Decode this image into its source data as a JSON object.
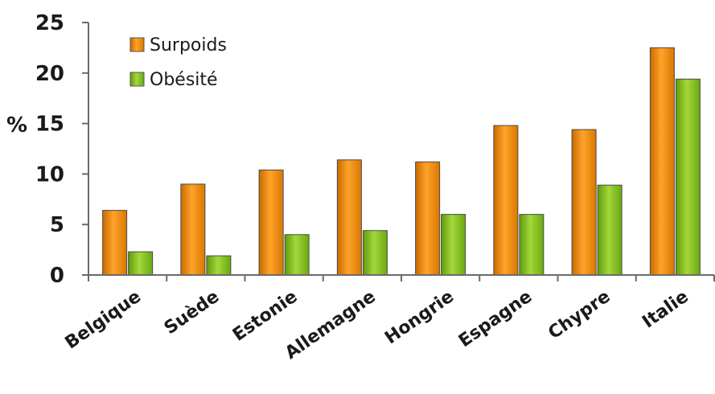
{
  "chart_data": {
    "type": "bar",
    "ylabel": "%",
    "ylim": [
      0,
      25
    ],
    "yticks": [
      "0",
      "5",
      "10",
      "15",
      "20",
      "25"
    ],
    "categories": [
      "Belgique",
      "Suède",
      "Estonie",
      "Allemagne",
      "Hongrie",
      "Espagne",
      "Chypre",
      "Italie"
    ],
    "series": [
      {
        "name": "Surpoids",
        "color": "#f08a12",
        "values": [
          6.4,
          9.0,
          10.4,
          11.4,
          11.2,
          14.8,
          14.4,
          22.5
        ]
      },
      {
        "name": "Obésité",
        "color": "#86c11a",
        "values": [
          2.3,
          1.9,
          4.0,
          4.4,
          6.0,
          6.0,
          8.9,
          19.4
        ]
      }
    ],
    "legend_position": "top-left",
    "grid": false
  }
}
